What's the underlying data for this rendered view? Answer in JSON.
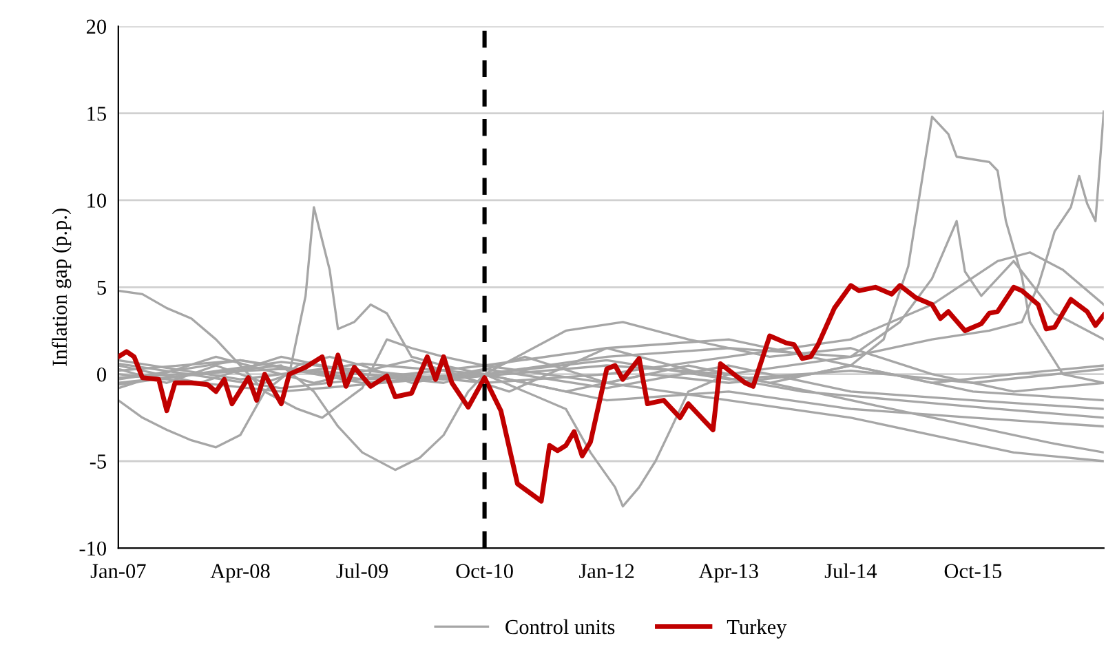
{
  "chart_data": {
    "type": "line",
    "ylabel": "Inflation gap (p.p.)",
    "xlim": [
      "2007-01",
      "2017-02"
    ],
    "xticks": [
      {
        "value": "2007-01",
        "label": "Jan-07"
      },
      {
        "value": "2008-04",
        "label": "Apr-08"
      },
      {
        "value": "2009-07",
        "label": "Jul-09"
      },
      {
        "value": "2010-10",
        "label": "Oct-10"
      },
      {
        "value": "2012-01",
        "label": "Jan-12"
      },
      {
        "value": "2013-04",
        "label": "Apr-13"
      },
      {
        "value": "2014-07",
        "label": "Jul-14"
      },
      {
        "value": "2015-10",
        "label": "Oct-15"
      }
    ],
    "ylim": [
      -10,
      20
    ],
    "yticks": [
      -10,
      -5,
      0,
      5,
      10,
      15,
      20
    ],
    "grid": "y",
    "legend": "bottom",
    "line_style": "solid",
    "marker": "none",
    "ref_lines": [
      {
        "axis": "x",
        "value": "2010-10",
        "color": "#000000",
        "line_style": "dashed"
      }
    ],
    "series": [
      {
        "name": "Control units",
        "color": "#a6a6a6",
        "x": [
          "2007-01",
          "2007-07",
          "2008-01",
          "2008-07",
          "2008-10",
          "2008-12",
          "2009-01",
          "2009-03",
          "2009-04",
          "2009-06",
          "2009-08",
          "2009-10",
          "2010-01",
          "2010-05",
          "2010-10",
          "2012-01",
          "2013-04",
          "2014-07",
          "2015-10",
          "2017-02"
        ],
        "values": [
          0.3,
          -0.5,
          0.5,
          -0.5,
          0,
          4.5,
          9.6,
          6,
          2.6,
          3.0,
          4.0,
          3.5,
          1.0,
          0.5,
          0,
          0.8,
          -0.3,
          0.2,
          -0.5,
          0.3
        ]
      },
      {
        "color": "#a6a6a6",
        "x": [
          "2007-01",
          "2007-04",
          "2007-07",
          "2007-10",
          "2008-01",
          "2008-04",
          "2008-07",
          "2008-11",
          "2009-02",
          "2009-07",
          "2009-10",
          "2010-01",
          "2010-05",
          "2010-10",
          "2012-01",
          "2013-04",
          "2014-07",
          "2015-10",
          "2017-02"
        ],
        "values": [
          4.8,
          4.6,
          3.8,
          3.2,
          2.0,
          0.5,
          -1.0,
          -2.0,
          -2.5,
          -0.8,
          2.0,
          1.5,
          1.0,
          0.5,
          1.5,
          2.0,
          0.5,
          -1.0,
          -1.5
        ]
      },
      {
        "color": "#a6a6a6",
        "x": [
          "2007-01",
          "2007-11",
          "2008-09",
          "2009-01",
          "2009-04",
          "2009-07",
          "2009-11",
          "2010-02",
          "2010-05",
          "2010-08",
          "2010-10",
          "2012-01",
          "2013-04",
          "2014-07",
          "2015-10",
          "2017-02"
        ],
        "values": [
          -0.5,
          0,
          0.5,
          -1.0,
          -3.0,
          -4.5,
          -5.5,
          -4.8,
          -3.5,
          -1.0,
          0,
          -1.5,
          -1.0,
          -2.0,
          -2.5,
          -3.0
        ]
      },
      {
        "color": "#a6a6a6",
        "x": [
          "2007-01",
          "2007-04",
          "2007-07",
          "2007-10",
          "2008-01",
          "2008-04",
          "2008-07",
          "2008-11",
          "2009-03",
          "2009-07",
          "2010-01",
          "2010-10",
          "2012-01",
          "2013-04",
          "2014-07",
          "2015-10",
          "2017-02"
        ],
        "values": [
          -1.5,
          -2.5,
          -3.2,
          -3.8,
          -4.2,
          -3.5,
          -1.0,
          0.5,
          1.0,
          0.5,
          -0.5,
          0.3,
          -0.8,
          0.5,
          -1.0,
          -1.5,
          -2.0
        ]
      },
      {
        "color": "#a6a6a6",
        "x": [
          "2007-01",
          "2008-04",
          "2009-07",
          "2010-10",
          "2011-08",
          "2012-06",
          "2013-04",
          "2014-02",
          "2014-07",
          "2014-11",
          "2015-01",
          "2015-02",
          "2015-05",
          "2015-07",
          "2015-08",
          "2015-12",
          "2016-01",
          "2016-02",
          "2016-04",
          "2016-05",
          "2016-09",
          "2017-02"
        ],
        "values": [
          0.8,
          -0.3,
          0.6,
          0,
          -1.0,
          0,
          -0.5,
          0,
          0.5,
          2.0,
          4.8,
          6.2,
          14.8,
          13.8,
          12.5,
          12.2,
          11.7,
          8.8,
          5.6,
          3.0,
          0,
          -0.5
        ]
      },
      {
        "color": "#a6a6a6",
        "x": [
          "2007-01",
          "2008-04",
          "2009-07",
          "2010-10",
          "2012-01",
          "2013-04",
          "2014-07",
          "2015-05",
          "2015-12",
          "2016-04",
          "2016-06",
          "2016-07",
          "2016-08",
          "2016-10",
          "2016-11",
          "2016-12",
          "2017-01",
          "2017-02"
        ],
        "values": [
          -0.3,
          0.8,
          -0.5,
          0,
          1.0,
          1.5,
          1.0,
          2.0,
          2.5,
          3.0,
          5.1,
          6.6,
          8.2,
          9.6,
          11.4,
          9.8,
          8.8,
          15.1
        ]
      },
      {
        "color": "#a6a6a6",
        "x": [
          "2007-01",
          "2008-04",
          "2009-07",
          "2010-10",
          "2011-03",
          "2011-08",
          "2011-11",
          "2012-02",
          "2012-03",
          "2012-05",
          "2012-07",
          "2012-09",
          "2012-11",
          "2013-04",
          "2014-02",
          "2014-12",
          "2015-10",
          "2016-08",
          "2017-02"
        ],
        "values": [
          0.2,
          0.8,
          -0.3,
          0,
          -1.0,
          -2.0,
          -4.5,
          -6.5,
          -7.6,
          -6.5,
          -5.0,
          -3.0,
          -1.0,
          0,
          -1.0,
          -2.0,
          -3.0,
          -4.0,
          -4.5
        ]
      },
      {
        "color": "#a6a6a6",
        "x": [
          "2007-01",
          "2008-09",
          "2010-05",
          "2012-01",
          "2013-04",
          "2014-07",
          "2015-01",
          "2015-05",
          "2015-08",
          "2015-09",
          "2015-11",
          "2016-03",
          "2016-08",
          "2017-02"
        ],
        "values": [
          -0.2,
          0.3,
          -0.3,
          0.5,
          0,
          1.0,
          3.0,
          5.5,
          8.8,
          5.9,
          4.5,
          6.5,
          3.5,
          2.0
        ]
      },
      {
        "color": "#a6a6a6",
        "x": [
          "2007-01",
          "2008-09",
          "2010-10",
          "2012-01",
          "2013-04",
          "2014-07",
          "2015-05",
          "2016-03",
          "2017-02"
        ],
        "values": [
          0.6,
          -0.8,
          0.5,
          -0.5,
          -1.5,
          -2.5,
          -3.5,
          -4.5,
          -5.0
        ]
      },
      {
        "color": "#a6a6a6",
        "x": [
          "2007-01",
          "2008-09",
          "2010-10",
          "2012-01",
          "2013-04",
          "2014-07",
          "2015-05",
          "2016-01",
          "2016-05",
          "2016-09",
          "2017-02"
        ],
        "values": [
          -0.6,
          0.7,
          -0.5,
          0,
          1.0,
          2.0,
          4.0,
          6.5,
          7.0,
          6.0,
          4.0
        ]
      },
      {
        "color": "#a6a6a6",
        "x": [
          "2007-01",
          "2007-11",
          "2008-09",
          "2009-07",
          "2010-05",
          "2011-03",
          "2012-01",
          "2012-11",
          "2013-09",
          "2014-07",
          "2015-05",
          "2016-03",
          "2017-02"
        ],
        "values": [
          0.5,
          -0.5,
          1.0,
          0,
          -0.5,
          1.0,
          -0.5,
          0.5,
          -0.5,
          0.5,
          -0.5,
          0,
          0.5
        ]
      },
      {
        "color": "#a6a6a6",
        "x": [
          "2007-01",
          "2008-01",
          "2009-01",
          "2010-01",
          "2011-01",
          "2012-01",
          "2013-01",
          "2014-01",
          "2015-01",
          "2016-01",
          "2017-02"
        ],
        "values": [
          -0.8,
          1.0,
          -0.5,
          0.8,
          -1.0,
          1.5,
          0,
          -1.0,
          -1.5,
          -2.0,
          -2.5
        ]
      },
      {
        "color": "#a6a6a6",
        "x": [
          "2007-01",
          "2008-09",
          "2010-10",
          "2011-08",
          "2012-03",
          "2012-11",
          "2013-09",
          "2014-07",
          "2015-05",
          "2016-03",
          "2017-02"
        ],
        "values": [
          0,
          -1.0,
          0,
          2.5,
          3.0,
          2.0,
          1.0,
          1.5,
          0,
          -1.0,
          -0.5
        ]
      },
      {
        "name": "Turkey",
        "color": "#c00000",
        "x": [
          "2007-01",
          "2007-02",
          "2007-03",
          "2007-04",
          "2007-06",
          "2007-07",
          "2007-08",
          "2007-10",
          "2007-12",
          "2008-01",
          "2008-02",
          "2008-03",
          "2008-05",
          "2008-06",
          "2008-07",
          "2008-09",
          "2008-10",
          "2008-12",
          "2009-02",
          "2009-03",
          "2009-04",
          "2009-05",
          "2009-06",
          "2009-08",
          "2009-10",
          "2009-11",
          "2010-01",
          "2010-03",
          "2010-04",
          "2010-05",
          "2010-06",
          "2010-08",
          "2010-10",
          "2010-12",
          "2011-02",
          "2011-05",
          "2011-06",
          "2011-07",
          "2011-08",
          "2011-09",
          "2011-10",
          "2011-11",
          "2012-01",
          "2012-02",
          "2012-03",
          "2012-05",
          "2012-06",
          "2012-08",
          "2012-10",
          "2012-11",
          "2013-01",
          "2013-02",
          "2013-03",
          "2013-06",
          "2013-07",
          "2013-09",
          "2013-11",
          "2013-12",
          "2014-01",
          "2014-02",
          "2014-03",
          "2014-05",
          "2014-07",
          "2014-08",
          "2014-10",
          "2014-12",
          "2015-01",
          "2015-03",
          "2015-05",
          "2015-06",
          "2015-07",
          "2015-09",
          "2015-11",
          "2015-12",
          "2016-01",
          "2016-03",
          "2016-04",
          "2016-06",
          "2016-07",
          "2016-08",
          "2016-10",
          "2016-12",
          "2017-01",
          "2017-02"
        ],
        "values": [
          1.0,
          1.3,
          1.0,
          -0.2,
          -0.3,
          -2.1,
          -0.5,
          -0.5,
          -0.6,
          -1.0,
          -0.3,
          -1.7,
          -0.2,
          -1.5,
          0,
          -1.7,
          0,
          0.4,
          1.0,
          -0.6,
          1.1,
          -0.7,
          0.4,
          -0.7,
          -0.1,
          -1.3,
          -1.1,
          1.0,
          -0.3,
          1.0,
          -0.5,
          -1.9,
          -0.2,
          -2.1,
          -6.3,
          -7.3,
          -4.1,
          -4.4,
          -4.1,
          -3.3,
          -4.7,
          -3.9,
          0.3,
          0.5,
          -0.3,
          0.9,
          -1.7,
          -1.5,
          -2.5,
          -1.7,
          -2.7,
          -3.2,
          0.6,
          -0.5,
          -0.7,
          2.2,
          1.8,
          1.7,
          0.9,
          1.0,
          1.7,
          3.8,
          5.1,
          4.8,
          5.0,
          4.6,
          5.1,
          4.4,
          4.0,
          3.2,
          3.6,
          2.5,
          2.9,
          3.5,
          3.6,
          5.0,
          4.8,
          4.0,
          2.6,
          2.7,
          4.3,
          3.6,
          2.8,
          3.4
        ]
      }
    ]
  }
}
